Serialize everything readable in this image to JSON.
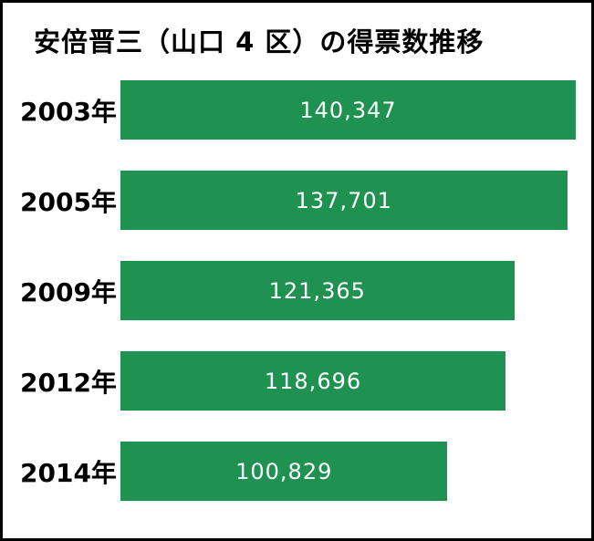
{
  "title": "安倍晋三（山口 4 区）の得票数推移",
  "colors": {
    "bar": "#1f9150",
    "bar_text": "#ffffff",
    "text": "#000000",
    "background": "#ffffff",
    "border": "#000000"
  },
  "chart_data": {
    "type": "bar",
    "orientation": "horizontal",
    "title": "安倍晋三（山口 4 区）の得票数推移",
    "categories": [
      "2003年",
      "2005年",
      "2009年",
      "2012年",
      "2014年"
    ],
    "values": [
      140347,
      137701,
      121365,
      118696,
      100829
    ],
    "data_labels": [
      "140,347",
      "137,701",
      "121,365",
      "118,696",
      "100,829"
    ],
    "xlabel": "",
    "ylabel": "",
    "xlim": [
      0,
      140347
    ],
    "grid": false,
    "legend": "none",
    "bar_color": "#1f9150",
    "value_label_position": "inside-center"
  }
}
